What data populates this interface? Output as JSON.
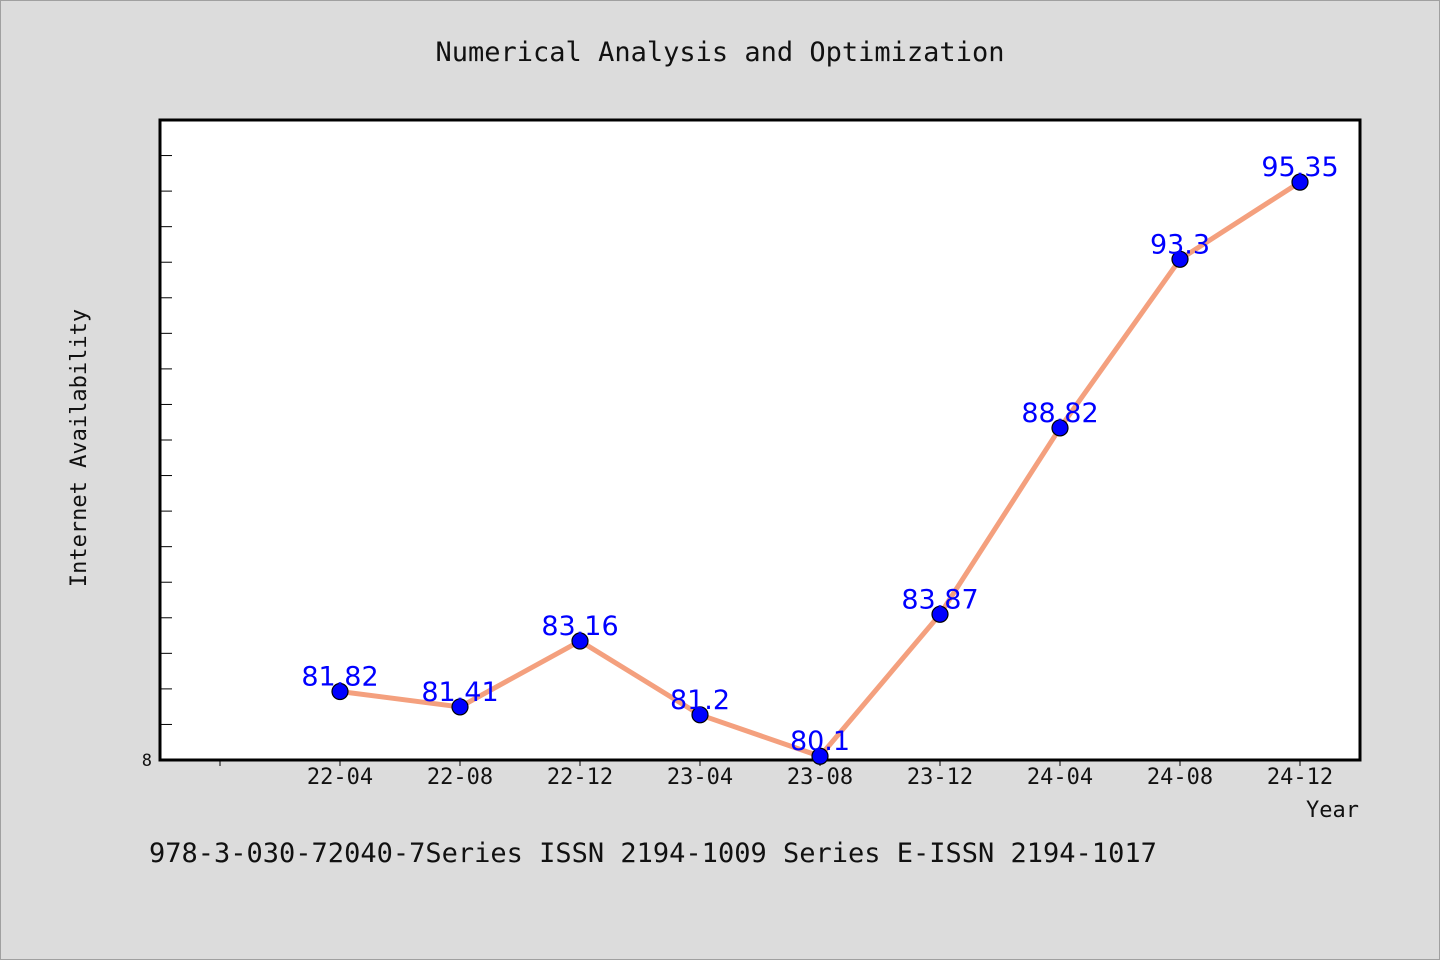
{
  "chart_data": {
    "type": "line",
    "title": "Numerical Analysis and Optimization",
    "xlabel": "Year",
    "ylabel": "Internet Availability",
    "categories": [
      "22-04",
      "22-08",
      "22-12",
      "23-04",
      "23-08",
      "23-12",
      "24-04",
      "24-08",
      "24-12"
    ],
    "series": [
      {
        "values": [
          81.82,
          81.41,
          83.16,
          81.2,
          80.1,
          83.87,
          88.82,
          93.3,
          95.35
        ],
        "value_labels": [
          "81.82",
          "81.41",
          "83.16",
          "81.2",
          "80.1",
          "83.87",
          "88.82",
          "93.3",
          "95.35"
        ]
      }
    ],
    "ylim": [
      80.0,
      97.0
    ],
    "y_tick_label": "8",
    "grid": false,
    "legend": "none",
    "colors": {
      "line": "#f4a07e",
      "marker": "#0000ff",
      "data_label": "#0000ff",
      "background": "#dcdcdc",
      "plot_background": "#ffffff"
    }
  },
  "footer": {
    "text": "978-3-030-72040-7Series ISSN 2194-1009 Series E-ISSN 2194-1017"
  }
}
